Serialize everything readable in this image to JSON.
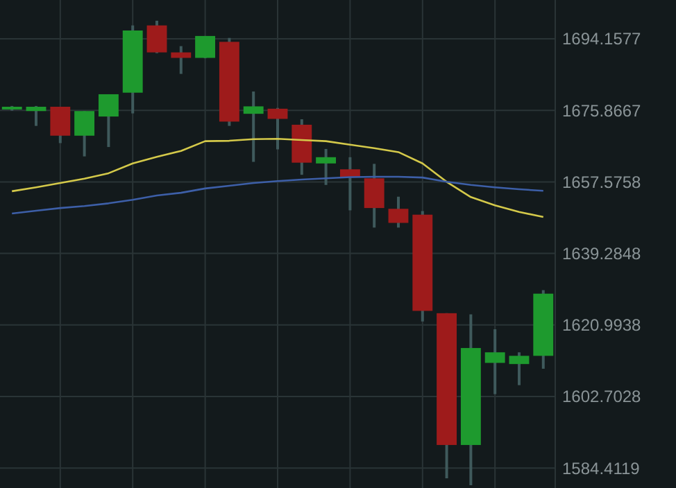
{
  "chart_data": {
    "type": "candlestick",
    "categories": [
      null,
      null,
      null,
      null,
      null,
      null,
      null,
      null,
      null,
      null,
      null,
      null,
      null,
      null,
      null,
      null,
      null,
      null,
      null,
      null,
      null,
      null,
      null
    ],
    "ohlc": [
      [
        1676.1,
        1677.0,
        1675.8,
        1676.8
      ],
      [
        1675.7,
        1677.0,
        1671.9,
        1676.8
      ],
      [
        1676.8,
        1676.8,
        1667.5,
        1669.4
      ],
      [
        1669.4,
        1675.7,
        1664.1,
        1675.7
      ],
      [
        1674.3,
        1680.0,
        1666.5,
        1680.0
      ],
      [
        1680.4,
        1697.6,
        1675.1,
        1696.3
      ],
      [
        1697.6,
        1698.8,
        1690.5,
        1690.7
      ],
      [
        1690.7,
        1692.3,
        1685.2,
        1689.3
      ],
      [
        1689.3,
        1694.9,
        1689.2,
        1694.9
      ],
      [
        1693.4,
        1694.4,
        1671.9,
        1673.0
      ],
      [
        1675.0,
        1680.7,
        1662.7,
        1676.9
      ],
      [
        1676.3,
        1676.5,
        1665.9,
        1673.7
      ],
      [
        1672.2,
        1673.6,
        1659.4,
        1662.5
      ],
      [
        1662.3,
        1666.0,
        1656.8,
        1663.9
      ],
      [
        1660.8,
        1663.9,
        1650.3,
        1658.8
      ],
      [
        1658.5,
        1662.2,
        1645.9,
        1650.9
      ],
      [
        1650.7,
        1653.8,
        1645.9,
        1647.1
      ],
      [
        1649.2,
        1650.1,
        1621.9,
        1624.6
      ],
      [
        1624.0,
        1624.0,
        1581.8,
        1590.3
      ],
      [
        1590.3,
        1623.7,
        1580.0,
        1615.1
      ],
      [
        1611.3,
        1619.9,
        1603.3,
        1614.0
      ],
      [
        1611.0,
        1614.0,
        1605.6,
        1613.1
      ],
      [
        1613.1,
        1629.9,
        1609.8,
        1629.0
      ]
    ],
    "colors": [
      "#1e9a2e",
      "#1e9a2e",
      "#9e1b1b",
      "#1e9a2e",
      "#1e9a2e",
      "#1e9a2e",
      "#9e1b1b",
      "#9e1b1b",
      "#1e9a2e",
      "#9e1b1b",
      "#1e9a2e",
      "#9e1b1b",
      "#9e1b1b",
      "#1e9a2e",
      "#9e1b1b",
      "#9e1b1b",
      "#9e1b1b",
      "#9e1b1b",
      "#9e1b1b",
      "#1e9a2e",
      "#1e9a2e",
      "#1e9a2e",
      "#1e9a2e"
    ],
    "series": [
      {
        "type": "line",
        "color": "#d4c94a",
        "values": [
          1655.2,
          1656.2,
          1657.3,
          1658.4,
          1659.8,
          1662.3,
          1664.0,
          1665.5,
          1668.0,
          1668.1,
          1668.5,
          1668.6,
          1668.3,
          1668.0,
          1667.1,
          1666.2,
          1665.2,
          1662.3,
          1657.6,
          1653.7,
          1651.6,
          1649.9,
          1648.6
        ]
      },
      {
        "type": "line",
        "color": "#3d5fa8",
        "values": [
          1649.5,
          1650.2,
          1650.9,
          1651.4,
          1652.1,
          1653.0,
          1654.1,
          1654.8,
          1655.9,
          1656.6,
          1657.3,
          1657.8,
          1658.2,
          1658.5,
          1658.8,
          1658.9,
          1658.9,
          1658.7,
          1657.6,
          1656.8,
          1656.2,
          1655.7,
          1655.3
        ]
      }
    ],
    "ylim": [
      1579.3,
      1704.1
    ],
    "yticks": [
      1584.4119,
      1602.7028,
      1620.9938,
      1639.2848,
      1657.5758,
      1675.8667,
      1694.1577
    ],
    "grid": true,
    "tick_labels": "y"
  }
}
